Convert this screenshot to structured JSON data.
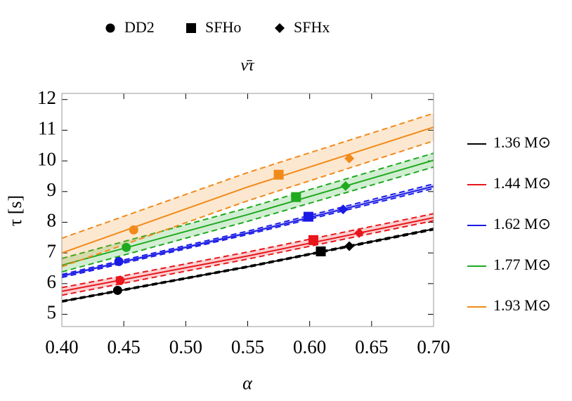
{
  "chart_data": {
    "type": "line",
    "title": "ν̄τ",
    "xlabel": "α",
    "ylabel": "τ [s]",
    "xlim": [
      0.4,
      0.7
    ],
    "ylim": [
      4.6,
      12.2
    ],
    "xticks": [
      {
        "value": 0.4,
        "label": "0.40"
      },
      {
        "value": 0.45,
        "label": "0.45"
      },
      {
        "value": 0.5,
        "label": "0.50"
      },
      {
        "value": 0.55,
        "label": "0.55"
      },
      {
        "value": 0.6,
        "label": "0.60"
      },
      {
        "value": 0.65,
        "label": "0.65"
      },
      {
        "value": 0.7,
        "label": "0.70"
      }
    ],
    "yticks": [
      5,
      6,
      7,
      8,
      9,
      10,
      11,
      12
    ],
    "models": [
      "DD2",
      "SFHo",
      "SFHx"
    ],
    "markers": [
      "circle",
      "square",
      "diamond"
    ],
    "x": [
      0.4,
      0.55,
      0.7
    ],
    "series": [
      {
        "name": "1.36 M⊙",
        "color": "#000000",
        "values": [
          5.42,
          6.55,
          7.78
        ],
        "lower": [
          5.4,
          6.53,
          7.75
        ],
        "upper": [
          5.44,
          6.57,
          7.8
        ],
        "points_x": [
          0.445,
          0.609,
          0.632
        ],
        "points_y": [
          5.78,
          7.05,
          7.22
        ]
      },
      {
        "name": "1.44 M⊙",
        "color": "#e8161b",
        "values": [
          5.75,
          6.9,
          8.15
        ],
        "lower": [
          5.62,
          6.8,
          8.05
        ],
        "upper": [
          5.87,
          7.03,
          8.28
        ],
        "points_x": [
          0.447,
          0.603,
          0.64
        ],
        "points_y": [
          6.1,
          7.42,
          7.65
        ]
      },
      {
        "name": "1.62 M⊙",
        "color": "#1a1ae6",
        "values": [
          6.25,
          7.65,
          9.17
        ],
        "lower": [
          6.2,
          7.6,
          9.1
        ],
        "upper": [
          6.3,
          7.71,
          9.25
        ],
        "points_x": [
          0.446,
          0.599,
          0.627
        ],
        "points_y": [
          6.72,
          8.18,
          8.42
        ]
      },
      {
        "name": "1.77 M⊙",
        "color": "#1faa1f",
        "values": [
          6.6,
          8.25,
          10.02
        ],
        "lower": [
          6.38,
          8.03,
          9.8
        ],
        "upper": [
          6.82,
          8.47,
          10.25
        ],
        "points_x": [
          0.452,
          0.589,
          0.629
        ],
        "points_y": [
          7.18,
          8.82,
          9.18
        ]
      },
      {
        "name": "1.93 M⊙",
        "color": "#f28a1a",
        "values": [
          7.0,
          9.15,
          11.1
        ],
        "lower": [
          6.55,
          8.7,
          10.65
        ],
        "upper": [
          7.48,
          9.62,
          11.55
        ],
        "points_x": [
          0.458,
          0.575,
          0.632
        ],
        "points_y": [
          7.75,
          9.55,
          10.08
        ]
      }
    ]
  }
}
